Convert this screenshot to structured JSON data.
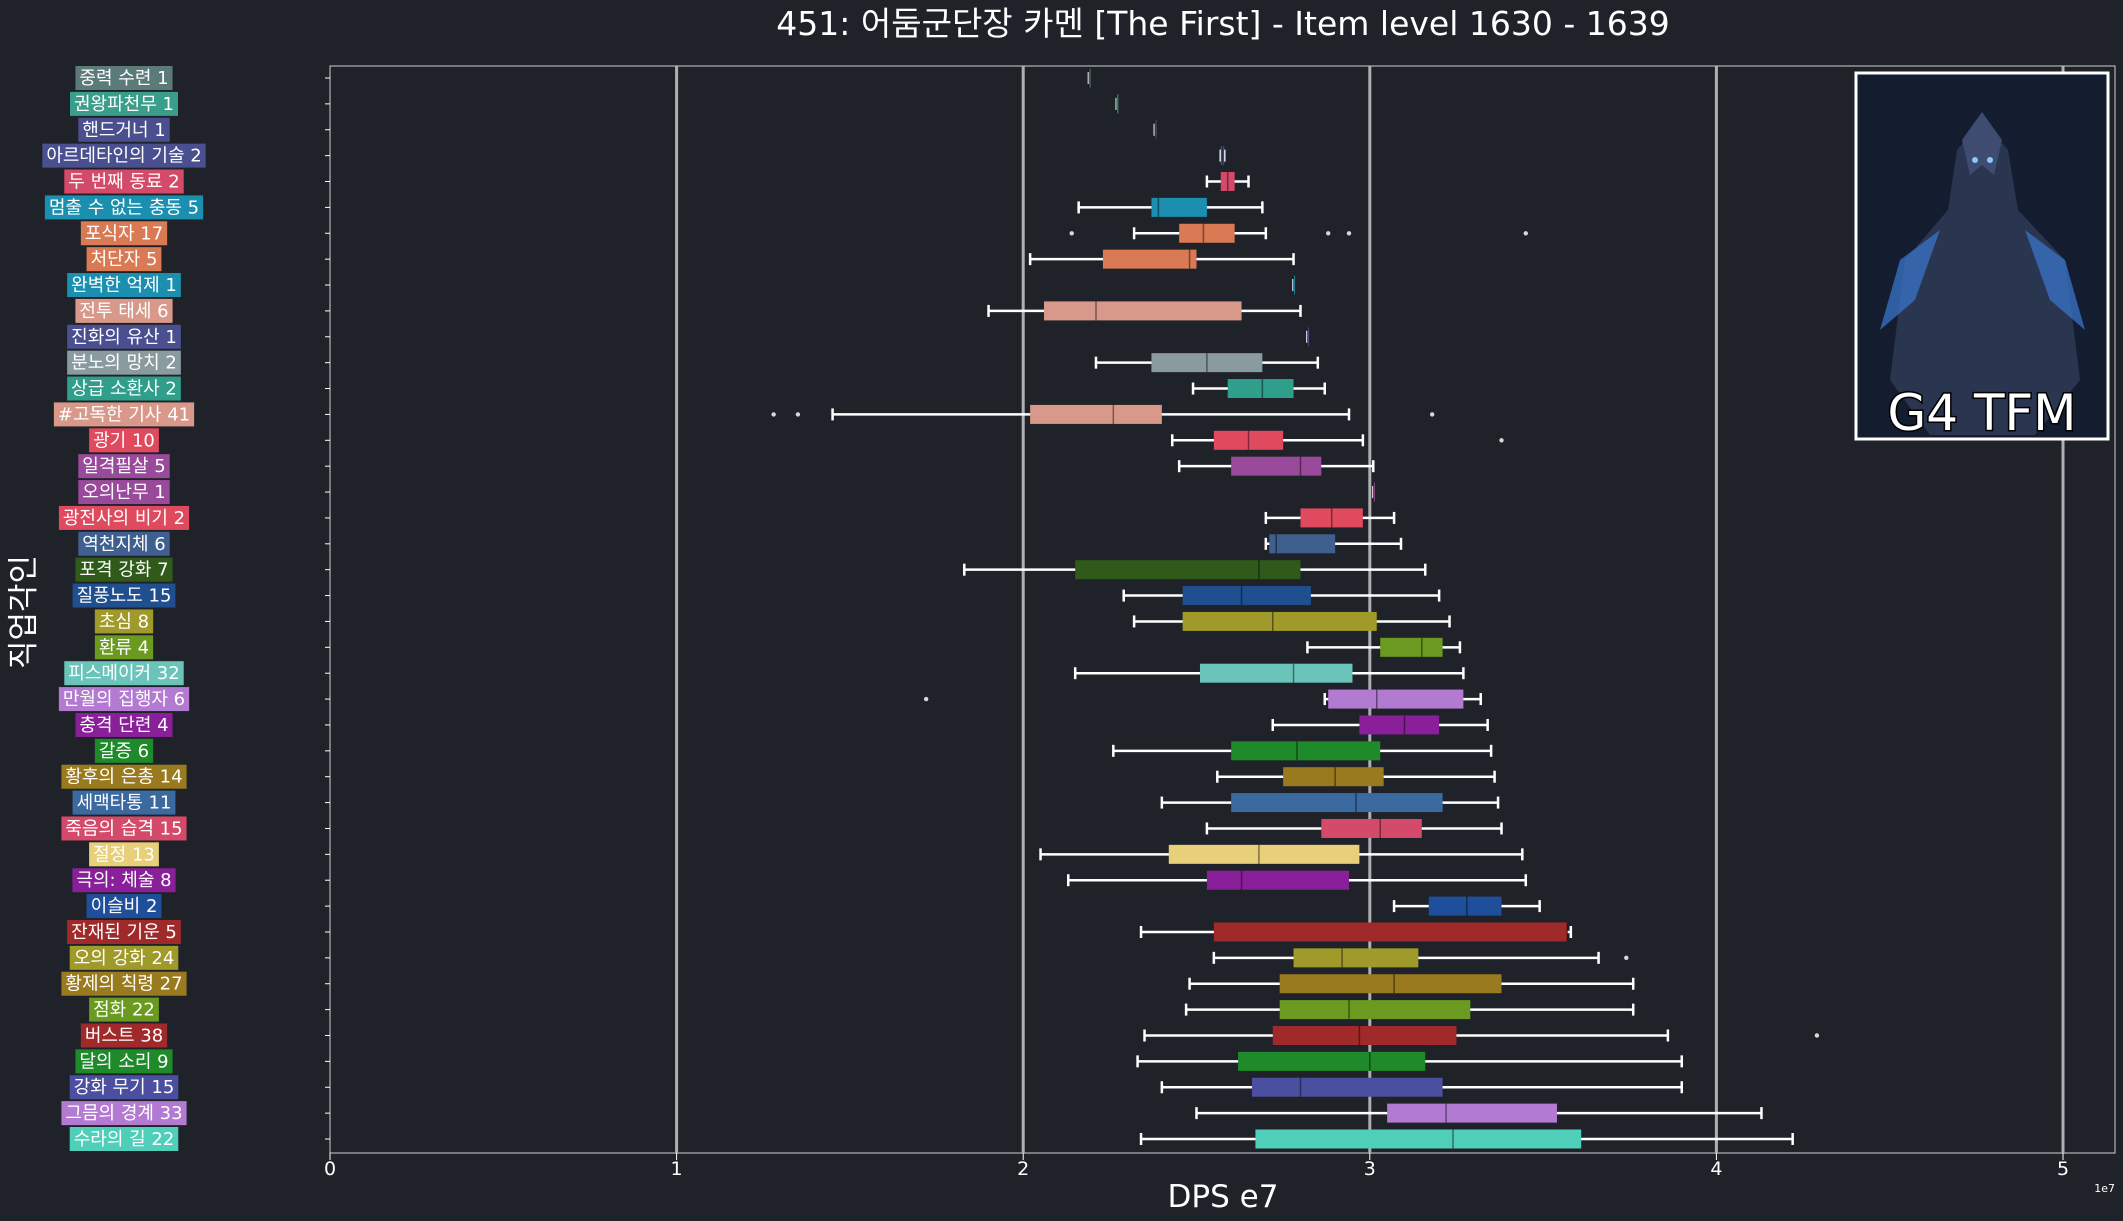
{
  "chart_data": {
    "type": "box",
    "title": "451: 어둠군단장 카멘 [The First] - Item level 1630 - 1639",
    "xlabel": "DPS e7",
    "ylabel": "직업각인",
    "x_exponent_label": "1e7",
    "xlim": [
      0,
      5.15
    ],
    "x_ticks": [
      0,
      1,
      2,
      3,
      4,
      5
    ],
    "grid": "vertical",
    "badge_text": "G4 TFM",
    "colors": {
      "background": "#1f2228",
      "text": "#ffffff",
      "whisker": "#ffffff",
      "grid": "#b0b0b0"
    },
    "series": [
      {
        "label": "중력 수련 1",
        "color": "#5b7b7a",
        "min": 2.19,
        "q1": 2.19,
        "median": 2.19,
        "q3": 2.19,
        "max": 2.19,
        "outliers": []
      },
      {
        "label": "권왕파천무 1",
        "color": "#3a9e8b",
        "min": 2.27,
        "q1": 2.27,
        "median": 2.27,
        "q3": 2.27,
        "max": 2.27,
        "outliers": []
      },
      {
        "label": "핸드거너 1",
        "color": "#4a4f8f",
        "min": 2.38,
        "q1": 2.38,
        "median": 2.38,
        "q3": 2.38,
        "max": 2.38,
        "outliers": []
      },
      {
        "label": "아르데타인의 기술 2",
        "color": "#4a4f8f",
        "min": 2.57,
        "q1": 2.57,
        "median": 2.575,
        "q3": 2.58,
        "max": 2.58,
        "outliers": []
      },
      {
        "label": "두 번째 동료 2",
        "color": "#d44a6a",
        "min": 2.53,
        "q1": 2.57,
        "median": 2.59,
        "q3": 2.61,
        "max": 2.65,
        "outliers": []
      },
      {
        "label": "멈출 수 없는 충동 5",
        "color": "#1a8fb0",
        "min": 2.16,
        "q1": 2.37,
        "median": 2.39,
        "q3": 2.53,
        "max": 2.69,
        "outliers": []
      },
      {
        "label": "포식자 17",
        "color": "#d97a55",
        "min": 2.32,
        "q1": 2.45,
        "median": 2.52,
        "q3": 2.61,
        "max": 2.7,
        "outliers": [
          2.14,
          2.88,
          2.94,
          3.45
        ]
      },
      {
        "label": "처단자 5",
        "color": "#d97a55",
        "min": 2.02,
        "q1": 2.23,
        "median": 2.48,
        "q3": 2.5,
        "max": 2.78,
        "outliers": []
      },
      {
        "label": "완벽한 억제 1",
        "color": "#1a8fb0",
        "min": 2.78,
        "q1": 2.78,
        "median": 2.78,
        "q3": 2.78,
        "max": 2.78,
        "outliers": []
      },
      {
        "label": "전투 태세 6",
        "color": "#d9998a",
        "min": 1.9,
        "q1": 2.06,
        "median": 2.21,
        "q3": 2.63,
        "max": 2.8,
        "outliers": []
      },
      {
        "label": "진화의 유산 1",
        "color": "#4a4f8f",
        "min": 2.82,
        "q1": 2.82,
        "median": 2.82,
        "q3": 2.82,
        "max": 2.82,
        "outliers": []
      },
      {
        "label": "분노의 망치 2",
        "color": "#8a9ba0",
        "min": 2.21,
        "q1": 2.37,
        "median": 2.53,
        "q3": 2.69,
        "max": 2.85,
        "outliers": []
      },
      {
        "label": "상급 소환사 2",
        "color": "#2f9e8a",
        "min": 2.49,
        "q1": 2.59,
        "median": 2.69,
        "q3": 2.78,
        "max": 2.87,
        "outliers": []
      },
      {
        "label": "#고독한 기사 41",
        "color": "#d9998a",
        "min": 1.45,
        "q1": 2.02,
        "median": 2.26,
        "q3": 2.4,
        "max": 2.94,
        "outliers": [
          1.28,
          1.35,
          3.18
        ]
      },
      {
        "label": "광기 10",
        "color": "#e04a5f",
        "min": 2.43,
        "q1": 2.55,
        "median": 2.65,
        "q3": 2.75,
        "max": 2.98,
        "outliers": [
          3.38
        ]
      },
      {
        "label": "일격필살 5",
        "color": "#9a4a9a",
        "min": 2.45,
        "q1": 2.6,
        "median": 2.8,
        "q3": 2.86,
        "max": 3.01,
        "outliers": []
      },
      {
        "label": "오의난무 1",
        "color": "#9a4a9a",
        "min": 3.01,
        "q1": 3.01,
        "median": 3.01,
        "q3": 3.01,
        "max": 3.01,
        "outliers": []
      },
      {
        "label": "광전사의 비기 2",
        "color": "#e04a5f",
        "min": 2.7,
        "q1": 2.8,
        "median": 2.89,
        "q3": 2.98,
        "max": 3.07,
        "outliers": []
      },
      {
        "label": "역천지체 6",
        "color": "#3f5f8f",
        "min": 2.7,
        "q1": 2.71,
        "median": 2.73,
        "q3": 2.9,
        "max": 3.09,
        "outliers": []
      },
      {
        "label": "포격 강화 7",
        "color": "#2f5a1a",
        "min": 1.83,
        "q1": 2.15,
        "median": 2.68,
        "q3": 2.8,
        "max": 3.16,
        "outliers": []
      },
      {
        "label": "질풍노도 15",
        "color": "#1f4f8f",
        "min": 2.29,
        "q1": 2.46,
        "median": 2.63,
        "q3": 2.83,
        "max": 3.2,
        "outliers": []
      },
      {
        "label": "초심 8",
        "color": "#a09a2a",
        "min": 2.32,
        "q1": 2.46,
        "median": 2.72,
        "q3": 3.02,
        "max": 3.23,
        "outliers": []
      },
      {
        "label": "환류 4",
        "color": "#6a9a1f",
        "min": 2.82,
        "q1": 3.03,
        "median": 3.15,
        "q3": 3.21,
        "max": 3.26,
        "outliers": []
      },
      {
        "label": "피스메이커 32",
        "color": "#6ac4b9",
        "min": 2.15,
        "q1": 2.51,
        "median": 2.78,
        "q3": 2.95,
        "max": 3.27,
        "outliers": []
      },
      {
        "label": "만월의 집행자 6",
        "color": "#b37ad1",
        "min": 2.87,
        "q1": 2.88,
        "median": 3.02,
        "q3": 3.27,
        "max": 3.32,
        "outliers": [
          1.72
        ]
      },
      {
        "label": "충격 단련 4",
        "color": "#8a1f9a",
        "min": 2.72,
        "q1": 2.97,
        "median": 3.1,
        "q3": 3.2,
        "max": 3.34,
        "outliers": []
      },
      {
        "label": "갈증 6",
        "color": "#1f8a2a",
        "min": 2.26,
        "q1": 2.6,
        "median": 2.79,
        "q3": 3.03,
        "max": 3.35,
        "outliers": []
      },
      {
        "label": "황후의 은총 14",
        "color": "#9a7a1f",
        "min": 2.56,
        "q1": 2.75,
        "median": 2.9,
        "q3": 3.04,
        "max": 3.36,
        "outliers": []
      },
      {
        "label": "세맥타통 11",
        "color": "#3a6aa0",
        "min": 2.4,
        "q1": 2.6,
        "median": 2.96,
        "q3": 3.21,
        "max": 3.37,
        "outliers": []
      },
      {
        "label": "죽음의 습격 15",
        "color": "#d44a6a",
        "min": 2.53,
        "q1": 2.86,
        "median": 3.03,
        "q3": 3.15,
        "max": 3.38,
        "outliers": []
      },
      {
        "label": "절정 13",
        "color": "#e8cf7a",
        "min": 2.05,
        "q1": 2.42,
        "median": 2.68,
        "q3": 2.97,
        "max": 3.44,
        "outliers": []
      },
      {
        "label": "극의: 체술 8",
        "color": "#8a1f9a",
        "min": 2.13,
        "q1": 2.53,
        "median": 2.63,
        "q3": 2.94,
        "max": 3.45,
        "outliers": []
      },
      {
        "label": "이슬비 2",
        "color": "#1f4f9a",
        "min": 3.07,
        "q1": 3.17,
        "median": 3.28,
        "q3": 3.38,
        "max": 3.49,
        "outliers": []
      },
      {
        "label": "잔재된 기운 5",
        "color": "#a02a2a",
        "min": 2.34,
        "q1": 2.55,
        "median": 3.57,
        "q3": 3.57,
        "max": 3.58,
        "outliers": []
      },
      {
        "label": "오의 강화 24",
        "color": "#a09a2a",
        "min": 2.55,
        "q1": 2.78,
        "median": 2.92,
        "q3": 3.14,
        "max": 3.66,
        "outliers": [
          3.74
        ]
      },
      {
        "label": "황제의 칙령 27",
        "color": "#9a7a1f",
        "min": 2.48,
        "q1": 2.74,
        "median": 3.07,
        "q3": 3.38,
        "max": 3.76,
        "outliers": []
      },
      {
        "label": "점화 22",
        "color": "#6a9a1f",
        "min": 2.47,
        "q1": 2.74,
        "median": 2.94,
        "q3": 3.29,
        "max": 3.76,
        "outliers": []
      },
      {
        "label": "버스트 38",
        "color": "#a02a2a",
        "min": 2.35,
        "q1": 2.72,
        "median": 2.97,
        "q3": 3.25,
        "max": 3.86,
        "outliers": [
          4.29
        ]
      },
      {
        "label": "달의 소리 9",
        "color": "#1f8a2a",
        "min": 2.33,
        "q1": 2.62,
        "median": 3.0,
        "q3": 3.16,
        "max": 3.9,
        "outliers": []
      },
      {
        "label": "강화 무기 15",
        "color": "#4a4f9f",
        "min": 2.4,
        "q1": 2.66,
        "median": 2.8,
        "q3": 3.21,
        "max": 3.9,
        "outliers": []
      },
      {
        "label": "그믐의 경계 33",
        "color": "#b37ad1",
        "min": 2.5,
        "q1": 3.05,
        "median": 3.22,
        "q3": 3.54,
        "max": 4.13,
        "outliers": []
      },
      {
        "label": "수라의 길 22",
        "color": "#4fcfb9",
        "min": 2.34,
        "q1": 2.67,
        "median": 3.24,
        "q3": 3.61,
        "max": 4.22,
        "outliers": []
      }
    ]
  }
}
